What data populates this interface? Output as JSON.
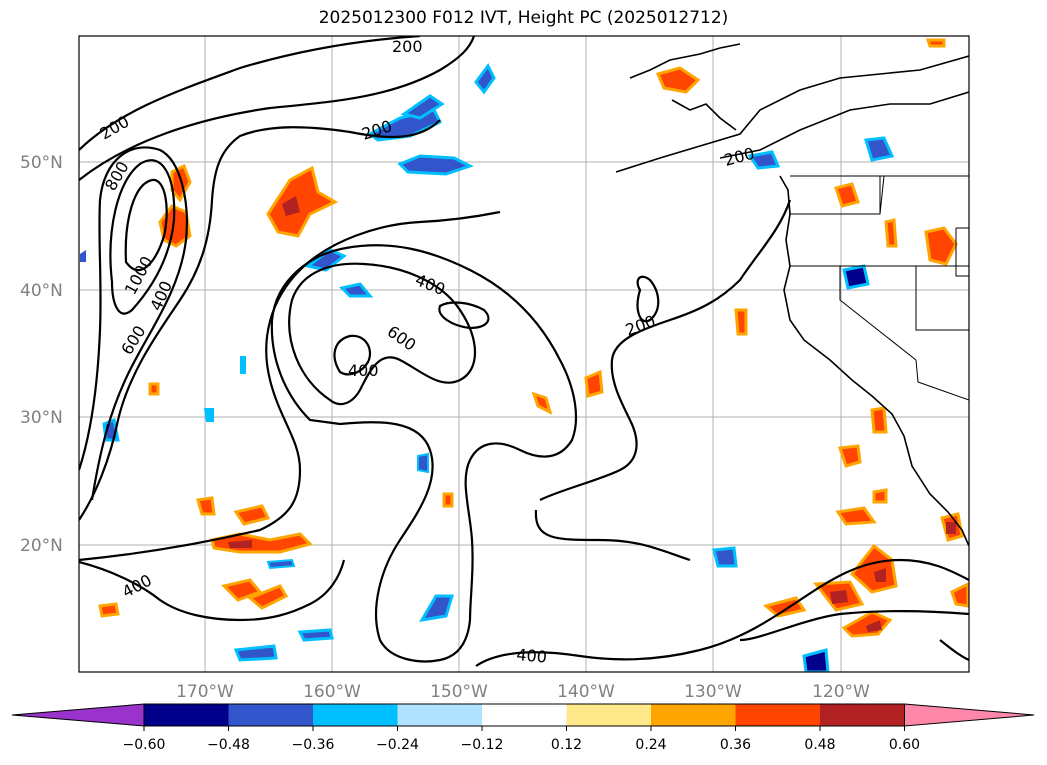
{
  "title": "2025012300 F012 IVT, Height PC (2025012712)",
  "lat_ticks": [
    "50°N",
    "40°N",
    "30°N",
    "20°N"
  ],
  "lon_ticks": [
    "170°W",
    "160°W",
    "150°W",
    "140°W",
    "130°W",
    "120°W"
  ],
  "colorbar": {
    "ticks": [
      "−0.60",
      "−0.48",
      "−0.36",
      "−0.24",
      "−0.12",
      "0.12",
      "0.24",
      "0.36",
      "0.48",
      "0.60"
    ],
    "colors": [
      "#9933cc",
      "#00008b",
      "#3355cc",
      "#00bfff",
      "#b0e2ff",
      "#ffffff",
      "#ffe98a",
      "#ffa500",
      "#ff4500",
      "#b22222",
      "#ff88aa"
    ]
  },
  "contour_labels": [
    "200",
    "200",
    "200",
    "200",
    "200",
    "800",
    "1000",
    "400",
    "600",
    "400",
    "600",
    "400",
    "400",
    "400"
  ]
}
